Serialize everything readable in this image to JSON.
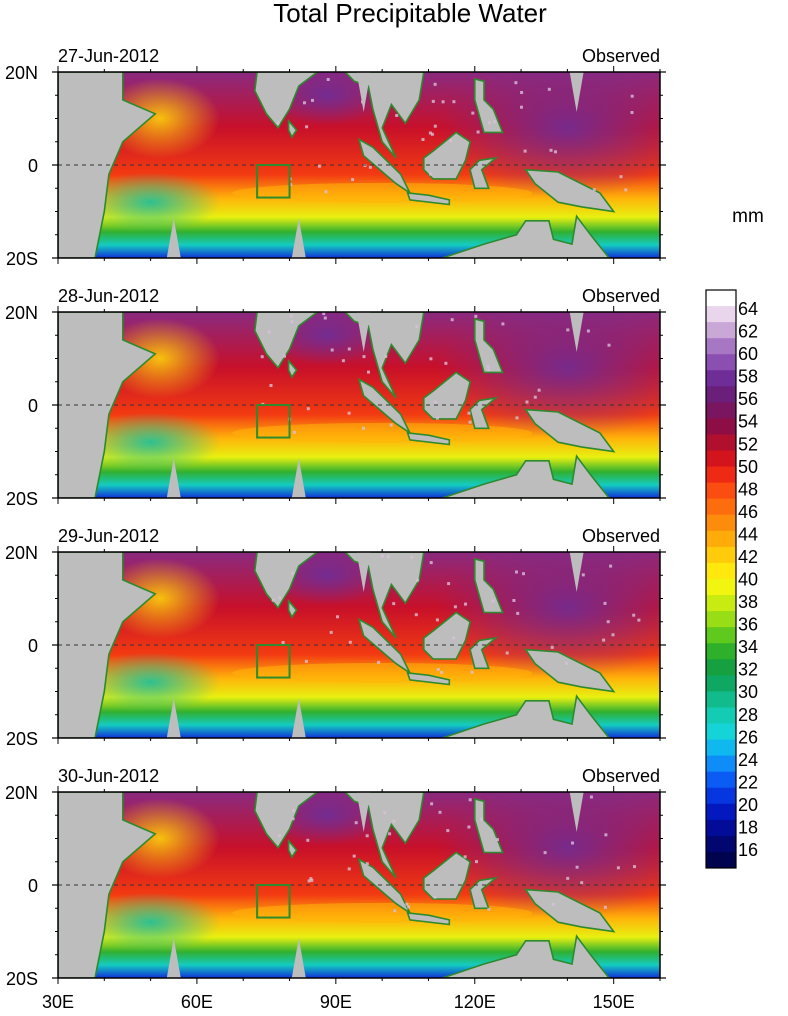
{
  "title": "Total Precipitable Water",
  "unit_label": "mm",
  "lat_labels": [
    "20N",
    "0",
    "20S"
  ],
  "lon_labels": [
    "30E",
    "60E",
    "90E",
    "120E",
    "150E"
  ],
  "panels": [
    {
      "date": "27-Jun-2012",
      "label": "Observed"
    },
    {
      "date": "28-Jun-2012",
      "label": "Observed"
    },
    {
      "date": "29-Jun-2012",
      "label": "Observed"
    },
    {
      "date": "30-Jun-2012",
      "label": "Observed"
    }
  ],
  "colorbar": {
    "tick_labels": [
      "64",
      "62",
      "60",
      "58",
      "56",
      "54",
      "52",
      "50",
      "48",
      "46",
      "44",
      "42",
      "40",
      "38",
      "36",
      "34",
      "32",
      "30",
      "28",
      "26",
      "24",
      "22",
      "20",
      "18",
      "16"
    ],
    "colors": [
      "#ffffff",
      "#e9d6ec",
      "#c9a8d8",
      "#a877c4",
      "#8a4fb0",
      "#6e2d97",
      "#6a1f7a",
      "#7a1560",
      "#8f0d45",
      "#b0102e",
      "#d4141c",
      "#ee2a14",
      "#fb4d10",
      "#fd6d0e",
      "#fe8c0c",
      "#ffab0a",
      "#ffcb0a",
      "#ffe80e",
      "#f2f50f",
      "#c8ec12",
      "#98dd16",
      "#5fc91e",
      "#2fb02a",
      "#16a040",
      "#0ea862",
      "#11bb8c",
      "#14ccb4",
      "#14d4d8",
      "#10b8f0",
      "#0e8cf8",
      "#0a5cf4",
      "#0636e0",
      "#0418c0",
      "#020c98",
      "#010670",
      "#00034e"
    ]
  },
  "map_extent": {
    "lon_min": 30,
    "lon_max": 160,
    "lat_min": -20,
    "lat_max": 20
  },
  "box_region": {
    "lon_min": 73,
    "lon_max": 80,
    "lat_min": -7,
    "lat_max": 0
  }
}
